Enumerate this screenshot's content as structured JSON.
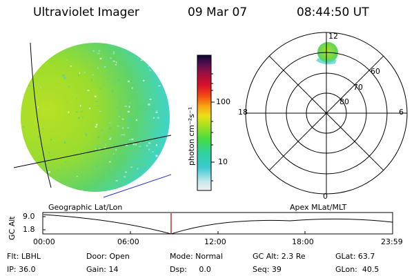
{
  "header": {
    "instrument": "Ultraviolet Imager",
    "date": "09 Mar 07",
    "time": "08:44:50 UT"
  },
  "colorbar": {
    "unit_label": "photon cm⁻²s⁻¹",
    "ticks": [
      "100",
      "10"
    ]
  },
  "polar": {
    "mlt_labels": {
      "top": "12",
      "left": "18",
      "right": "6",
      "bottom": "0"
    },
    "lat_labels": [
      "60",
      "70",
      "80"
    ]
  },
  "timeline": {
    "left_title": "Geographic Lat/Lon",
    "right_title": "Apex MLat/MLT",
    "axis_label": "GC Alt",
    "y_top": "9.0",
    "y_bottom": "1.8",
    "x_ticks": [
      "00:00",
      "06:00",
      "12:00",
      "18:00",
      "23:59"
    ],
    "cursor_color": "#d40000"
  },
  "footer": {
    "row1": [
      "Flt: LBHL",
      "Door: Open",
      "Mode: Normal",
      "GC Alt: 2.3 Re",
      "GLat: 63.7"
    ],
    "row2": [
      "IP: 36.0",
      "Gain: 14",
      "Dsp:     0.0",
      "Seq: 39",
      "GLon:  40.5"
    ]
  },
  "colors": {
    "disk_bright": "#a8dd28",
    "disk_mid": "#6cd25c",
    "disk_dim": "#3fd4c8",
    "aurora_spot": "#88e23a"
  }
}
